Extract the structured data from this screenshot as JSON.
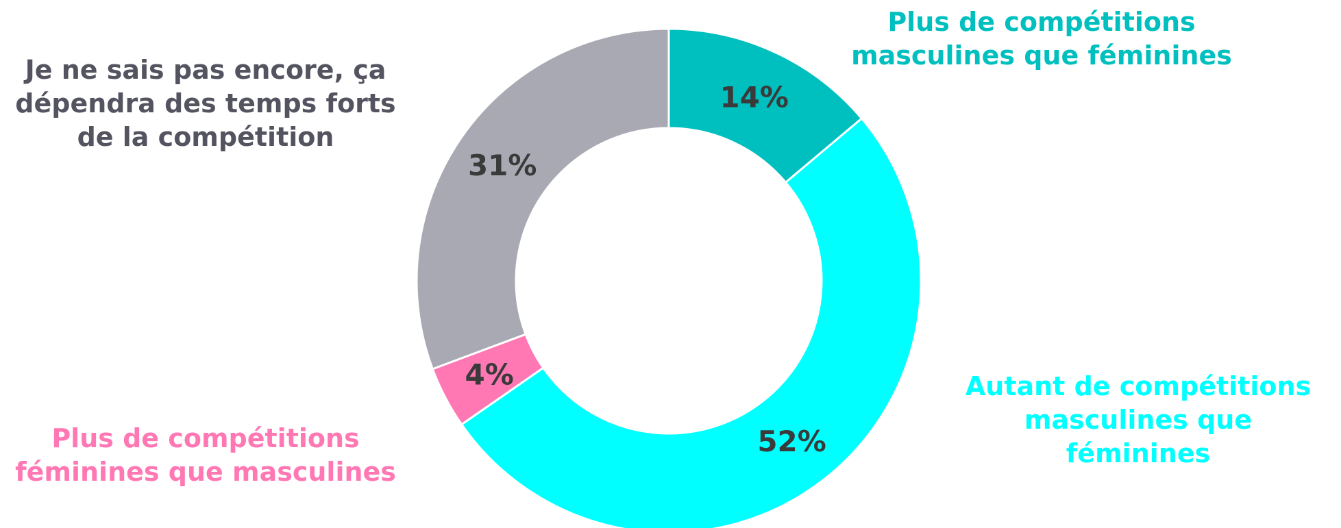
{
  "chart_data": {
    "type": "pie",
    "donut": true,
    "value_suffix": "%",
    "slices": [
      {
        "label_lines": [
          "Plus de compétitions",
          "masculines que féminines"
        ],
        "value": 14,
        "color": "#00BFBF",
        "label_color": "#00BFBF"
      },
      {
        "label_lines": [
          "Autant de compétitions",
          "masculines que",
          "féminines"
        ],
        "value": 52,
        "color": "#00FFFF",
        "label_color": "#00FFFF"
      },
      {
        "label_lines": [
          "Plus de compétitions",
          "féminines que masculines"
        ],
        "value": 4,
        "color": "#FF78B4",
        "label_color": "#FF78B4"
      },
      {
        "label_lines": [
          "Je ne sais pas encore, ça",
          "dépendra des temps forts",
          "de la compétition"
        ],
        "value": 31,
        "color": "#A9A9B3",
        "label_color": "#545461"
      }
    ],
    "value_label_color": "#3A3A3A"
  }
}
